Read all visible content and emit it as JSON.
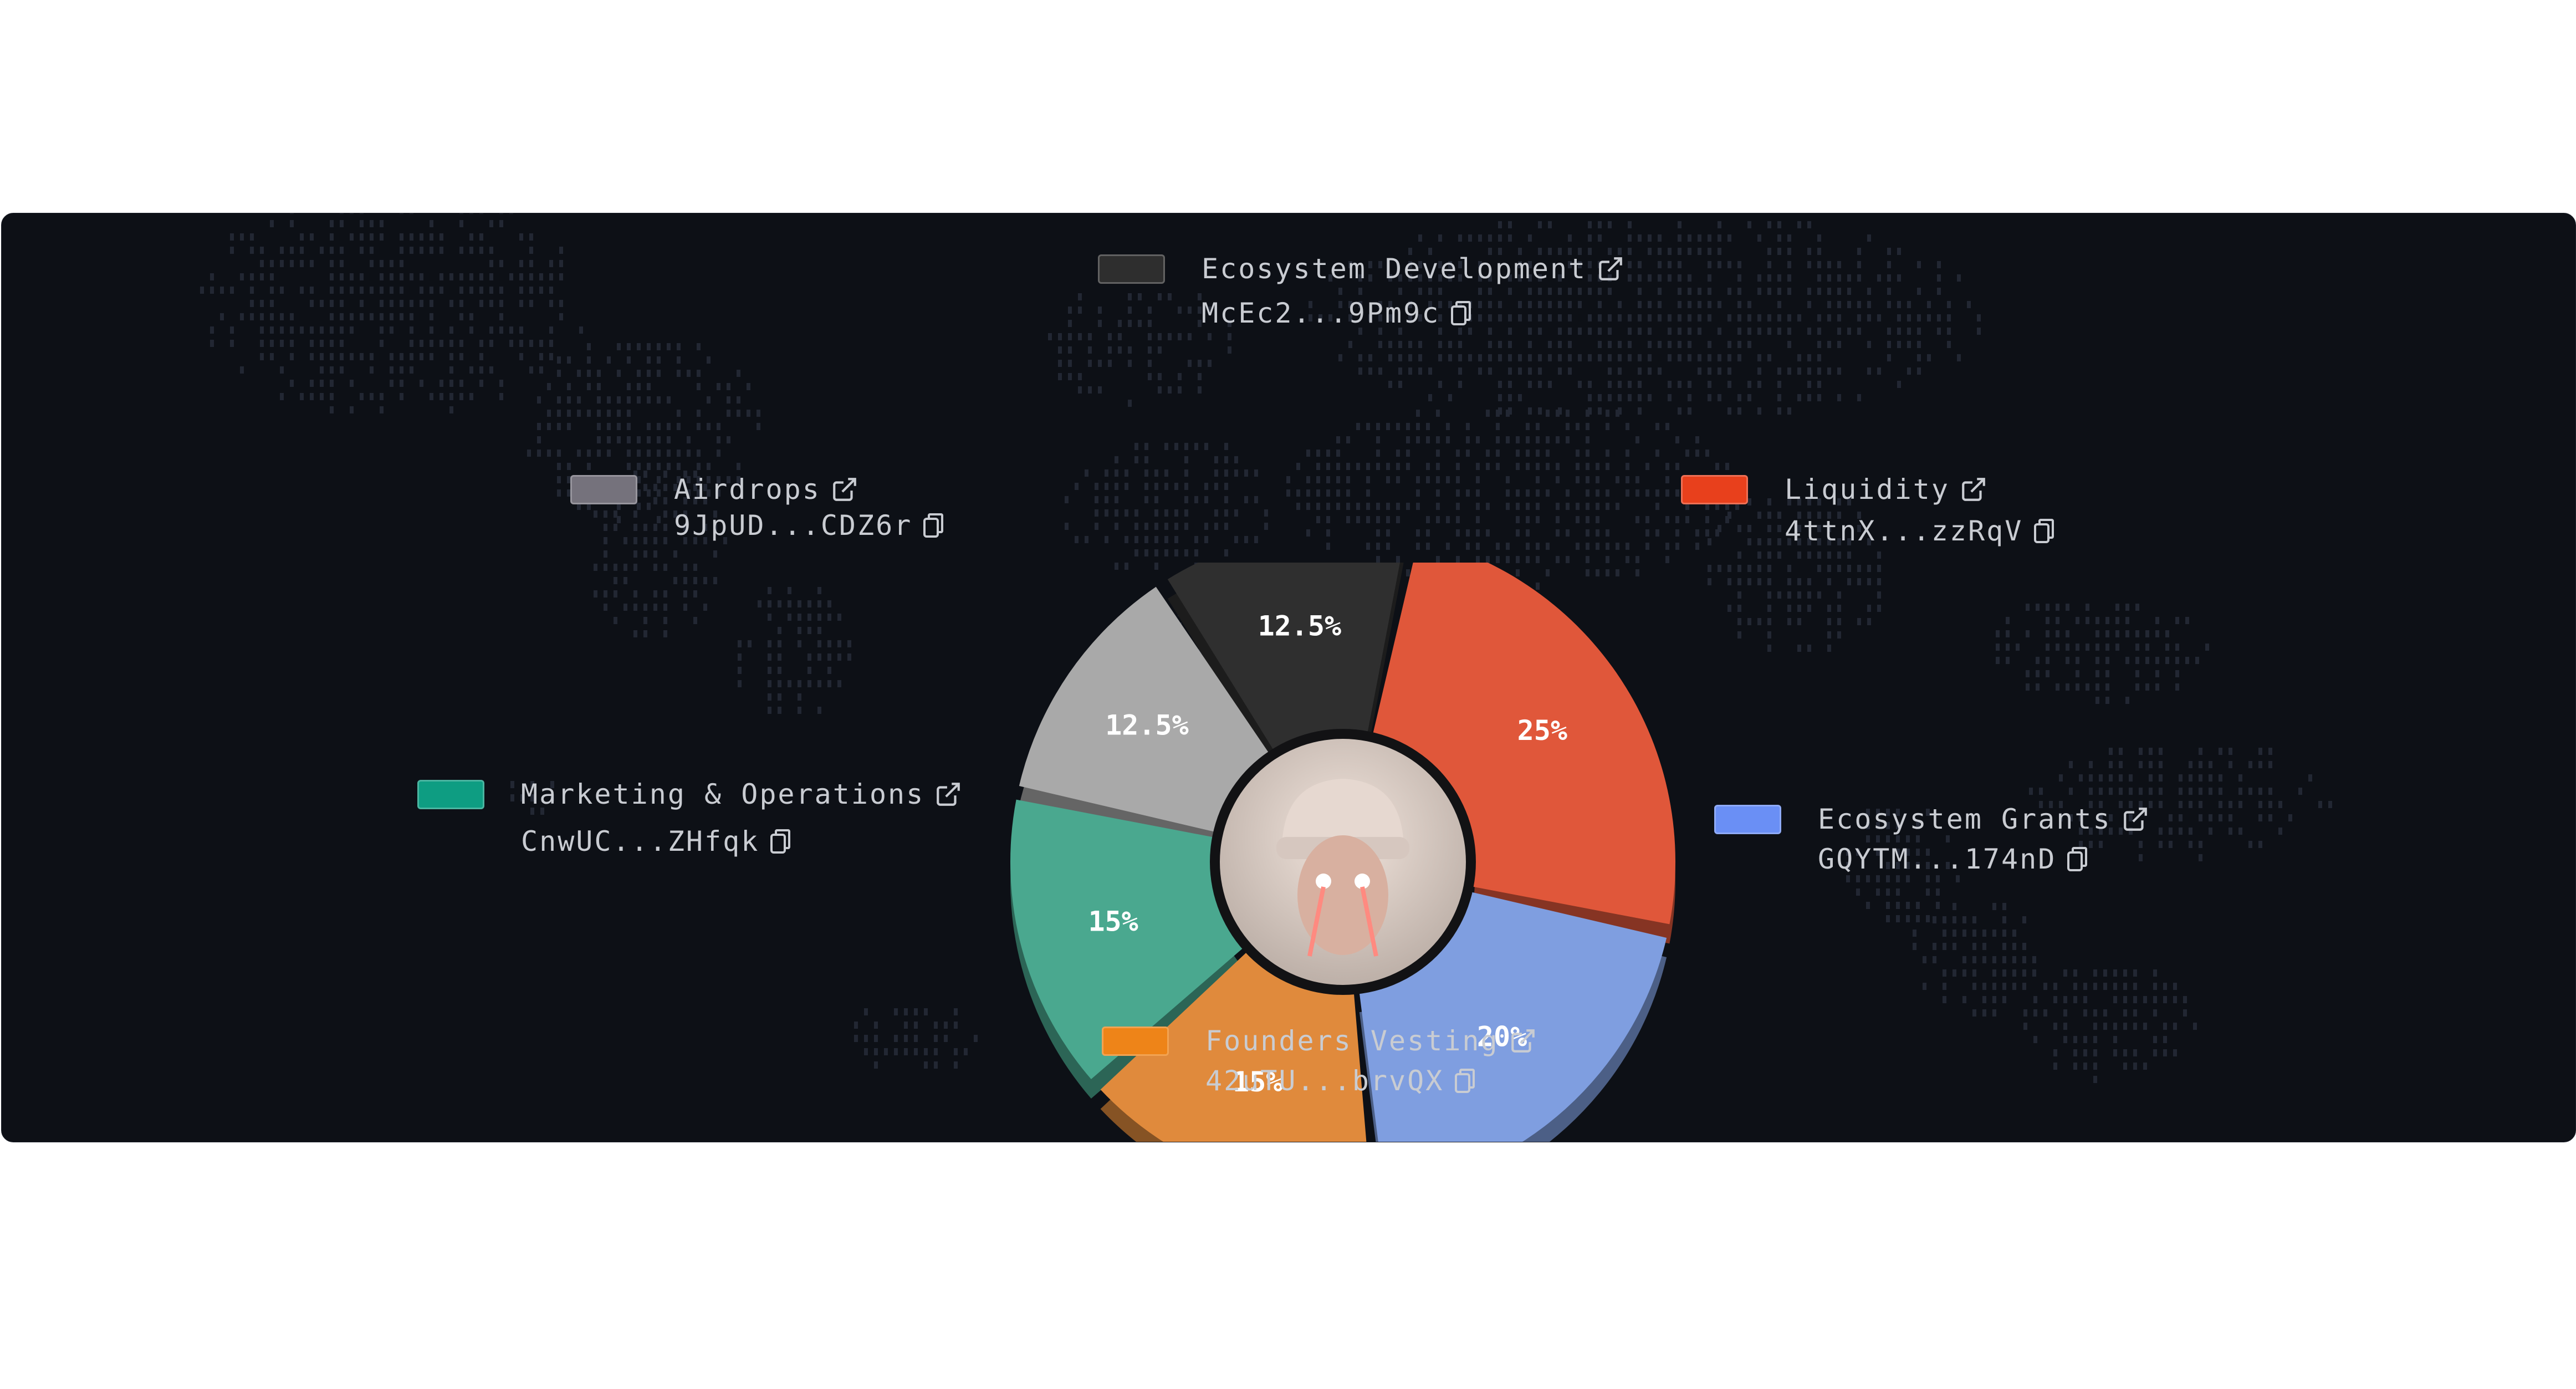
{
  "chart_data": {
    "type": "pie",
    "labels": [
      "Liquidity",
      "Ecosystem Grants",
      "Founders Vesting",
      "Marketing & Operations",
      "Airdrops",
      "Ecosystem Development"
    ],
    "values": [
      25,
      20,
      15,
      15,
      12.5,
      12.5
    ],
    "value_labels": [
      "25%",
      "20%",
      "15%",
      "15%",
      "12.5%",
      "12.5%"
    ],
    "colors": [
      "#e0573a",
      "#7f9ee0",
      "#e08a3c",
      "#4aa88f",
      "#a9a9a9",
      "#2f2f2f"
    ],
    "legend_colors": [
      "#e8401c",
      "#6a8ff5",
      "#ee8418",
      "#0e9d82",
      "#75727c",
      "#2e2e2e"
    ],
    "addresses": [
      "4ttnX...zzRqV",
      "GQYTM...174nD",
      "42uTU...brvQX",
      "CnwUC...ZHfqk",
      "9JpUD...CDZ6r",
      "McEc2...9Pm9c"
    ]
  },
  "icons": {
    "external": "external-link-icon",
    "copy": "copy-icon",
    "center": "avatar-laser-eyes"
  }
}
